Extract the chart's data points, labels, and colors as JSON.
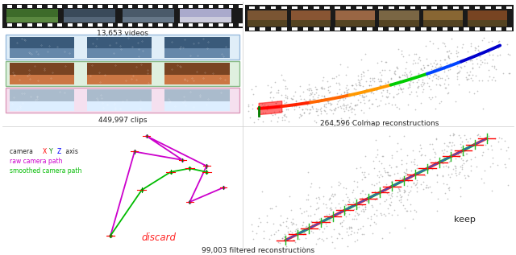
{
  "title_videos": "13,653 videos",
  "title_clips": "449,997 clips",
  "title_colmap": "264,596 Colmap reconstructions",
  "title_filtered": "99,003 filtered reconstructions",
  "label_discard": "discard",
  "label_keep": "keep",
  "legend_xyz": "camera XYZ axis",
  "legend_raw": "raw camera path",
  "legend_smooth": "smoothed camera path",
  "bg_color": "#ffffff",
  "magenta_color": "#cc00cc",
  "green_color": "#00bb00",
  "discard_color": "#ff2222",
  "text_color": "#222222",
  "divider_color": "#cccccc",
  "film_bg": "#1a1a1a",
  "point_color": "#888888"
}
